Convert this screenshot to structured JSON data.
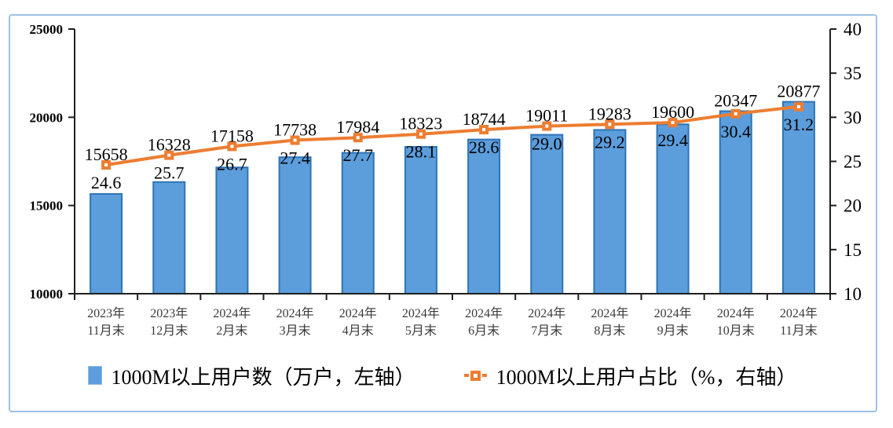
{
  "chart_data": {
    "type": "bar",
    "combo": "bar+line dual-axis",
    "title": "",
    "categories": [
      [
        "2023年",
        "11月末"
      ],
      [
        "2023年",
        "12月末"
      ],
      [
        "2024年",
        "2月末"
      ],
      [
        "2024年",
        "3月末"
      ],
      [
        "2024年",
        "4月末"
      ],
      [
        "2024年",
        "5月末"
      ],
      [
        "2024年",
        "6月末"
      ],
      [
        "2024年",
        "7月末"
      ],
      [
        "2024年",
        "8月末"
      ],
      [
        "2024年",
        "9月末"
      ],
      [
        "2024年",
        "10月末"
      ],
      [
        "2024年",
        "11月末"
      ]
    ],
    "series": [
      {
        "name": "1000M以上用户数（万户，左轴）",
        "type": "bar",
        "axis": "left",
        "values": [
          15658,
          16328,
          17158,
          17738,
          17984,
          18323,
          18744,
          19011,
          19283,
          19600,
          20347,
          20877
        ]
      },
      {
        "name": "1000M以上用户占比（%，右轴）",
        "type": "line",
        "axis": "right",
        "values": [
          24.6,
          25.7,
          26.7,
          27.4,
          27.7,
          28.1,
          28.6,
          29.0,
          29.2,
          29.4,
          30.4,
          31.2
        ]
      }
    ],
    "left_axis": {
      "min": 10000,
      "max": 25000,
      "ticks": [
        10000,
        15000,
        20000,
        25000
      ]
    },
    "right_axis": {
      "min": 10,
      "max": 40,
      "ticks": [
        10,
        15,
        20,
        25,
        30,
        35,
        40
      ]
    },
    "grid": false,
    "legend_position": "bottom",
    "colors": {
      "bar_fill": "#5C9DDC",
      "bar_border": "#2E75B6",
      "line": "#ED7D31",
      "marker_center": "#ffffff",
      "axis": "#1f1f1f",
      "frame_border": "#9CC3E6"
    }
  }
}
